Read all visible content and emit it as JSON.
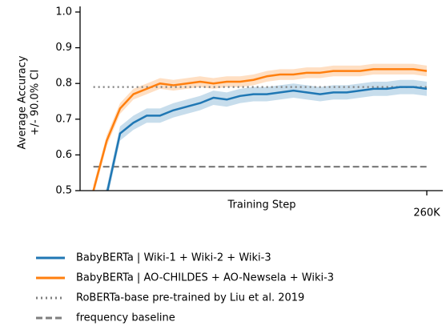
{
  "chart_data": {
    "type": "line",
    "xlabel": "Training Step",
    "ylabel": [
      "Average Accuracy",
      "+/- 90.0% CI"
    ],
    "x": [
      10000,
      20000,
      30000,
      40000,
      50000,
      60000,
      70000,
      80000,
      90000,
      100000,
      110000,
      120000,
      130000,
      140000,
      150000,
      160000,
      170000,
      180000,
      190000,
      200000,
      210000,
      220000,
      230000,
      240000,
      250000,
      260000
    ],
    "xlim": [
      0,
      272000
    ],
    "xticks": [
      {
        "value": 260000,
        "label": "260K"
      }
    ],
    "ylim": [
      0.5,
      1.0
    ],
    "yticks": [
      0.5,
      0.6,
      0.7,
      0.8,
      0.9,
      {
        "value": 1,
        "label": "1.0"
      }
    ],
    "grid": false,
    "legend": "below",
    "series": [
      {
        "name": "BabyBERTa | Wiki-1 + Wiki-2 + Wiki-3",
        "color": "#1f77b4",
        "values": [
          0.4,
          0.49,
          0.66,
          0.69,
          0.71,
          0.71,
          0.725,
          0.735,
          0.745,
          0.76,
          0.755,
          0.765,
          0.77,
          0.77,
          0.775,
          0.78,
          0.775,
          0.77,
          0.775,
          0.775,
          0.78,
          0.785,
          0.785,
          0.79,
          0.79,
          0.785
        ],
        "lower": [
          0.38,
          0.47,
          0.64,
          0.67,
          0.69,
          0.69,
          0.705,
          0.715,
          0.725,
          0.74,
          0.735,
          0.745,
          0.75,
          0.75,
          0.755,
          0.76,
          0.755,
          0.75,
          0.755,
          0.755,
          0.76,
          0.765,
          0.765,
          0.77,
          0.77,
          0.765
        ],
        "upper": [
          0.42,
          0.51,
          0.68,
          0.71,
          0.73,
          0.73,
          0.745,
          0.755,
          0.765,
          0.78,
          0.775,
          0.785,
          0.79,
          0.79,
          0.795,
          0.8,
          0.795,
          0.79,
          0.795,
          0.795,
          0.8,
          0.805,
          0.805,
          0.81,
          0.81,
          0.805
        ]
      },
      {
        "name": "BabyBERTa | AO-CHILDES + AO-Newsela + Wiki-3",
        "color": "#ff7f0e",
        "values": [
          0.5,
          0.64,
          0.73,
          0.77,
          0.785,
          0.8,
          0.795,
          0.8,
          0.805,
          0.8,
          0.805,
          0.805,
          0.81,
          0.82,
          0.825,
          0.825,
          0.83,
          0.83,
          0.835,
          0.835,
          0.835,
          0.84,
          0.84,
          0.84,
          0.84,
          0.835
        ],
        "lower": [
          0.485,
          0.625,
          0.715,
          0.755,
          0.77,
          0.785,
          0.78,
          0.785,
          0.79,
          0.785,
          0.79,
          0.79,
          0.795,
          0.805,
          0.81,
          0.81,
          0.815,
          0.815,
          0.82,
          0.82,
          0.82,
          0.825,
          0.825,
          0.825,
          0.825,
          0.82
        ],
        "upper": [
          0.515,
          0.655,
          0.745,
          0.785,
          0.8,
          0.815,
          0.81,
          0.815,
          0.82,
          0.815,
          0.82,
          0.82,
          0.825,
          0.835,
          0.84,
          0.84,
          0.845,
          0.845,
          0.85,
          0.85,
          0.85,
          0.855,
          0.855,
          0.855,
          0.855,
          0.85
        ]
      }
    ],
    "hlines": [
      {
        "name": "RoBERTa-base pre-trained by Liu et al. 2019",
        "color": "#7f7f7f",
        "style": "dotted",
        "value": 0.79
      },
      {
        "name": "frequency baseline",
        "color": "#7f7f7f",
        "style": "dashed",
        "value": 0.567
      }
    ]
  }
}
